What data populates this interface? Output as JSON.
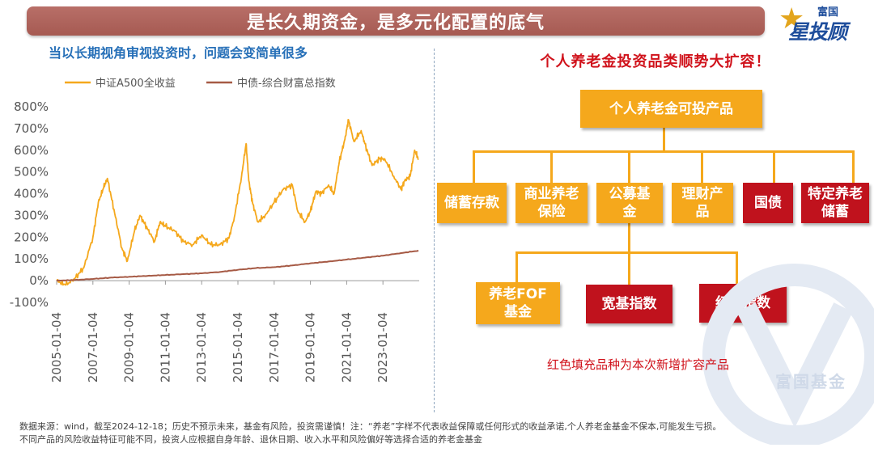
{
  "header": {
    "title": "是长久期资金，是多元化配置的底气"
  },
  "logo": {
    "top": "富国",
    "main": "星投顾",
    "icon": "star-icon"
  },
  "left": {
    "subtitle": "当以长期视角审视投资时，问题会变简单很多"
  },
  "chart_data": {
    "type": "line",
    "title": "",
    "xlabel": "",
    "ylabel": "",
    "ylim": [
      -100,
      800
    ],
    "yticks": [
      "800%",
      "700%",
      "600%",
      "500%",
      "400%",
      "300%",
      "200%",
      "100%",
      "0%",
      "-100%"
    ],
    "ytick_values": [
      800,
      700,
      600,
      500,
      400,
      300,
      200,
      100,
      0,
      -100
    ],
    "xticks": [
      "2005-01-04",
      "2007-01-04",
      "2009-01-04",
      "2011-01-04",
      "2013-01-04",
      "2015-01-04",
      "2017-01-04",
      "2019-01-04",
      "2021-01-04",
      "2023-01-04"
    ],
    "xtick_years": [
      2005,
      2007,
      2009,
      2011,
      2013,
      2015,
      2017,
      2019,
      2021,
      2023
    ],
    "xlim": [
      2005.0,
      2025.0
    ],
    "legend_position": "top",
    "series": [
      {
        "name": "中证A500全收益",
        "color": "#f5a81c",
        "x": [
          2005.0,
          2005.5,
          2006.0,
          2006.5,
          2007.0,
          2007.3,
          2007.6,
          2007.8,
          2008.2,
          2008.6,
          2008.9,
          2009.3,
          2009.6,
          2010.0,
          2010.4,
          2010.7,
          2011.0,
          2011.5,
          2012.0,
          2012.5,
          2013.0,
          2013.5,
          2014.0,
          2014.5,
          2014.8,
          2015.2,
          2015.45,
          2015.6,
          2015.8,
          2016.1,
          2016.5,
          2017.0,
          2017.5,
          2018.0,
          2018.3,
          2018.7,
          2019.0,
          2019.3,
          2019.6,
          2020.0,
          2020.3,
          2020.6,
          2020.9,
          2021.1,
          2021.4,
          2021.8,
          2022.0,
          2022.4,
          2022.8,
          2023.1,
          2023.6,
          2024.0,
          2024.2,
          2024.5,
          2024.75,
          2024.96
        ],
        "values": [
          0,
          -20,
          10,
          60,
          200,
          360,
          430,
          470,
          310,
          150,
          90,
          230,
          300,
          240,
          180,
          270,
          250,
          230,
          180,
          165,
          210,
          165,
          165,
          195,
          290,
          480,
          630,
          460,
          360,
          270,
          300,
          360,
          420,
          440,
          320,
          270,
          320,
          410,
          400,
          440,
          400,
          550,
          650,
          740,
          640,
          690,
          630,
          530,
          560,
          560,
          480,
          420,
          460,
          480,
          600,
          560
        ]
      },
      {
        "name": "中债-综合财富总指数",
        "color": "#a65a45",
        "x": [
          2005.0,
          2006.0,
          2007.0,
          2008.0,
          2009.0,
          2010.0,
          2011.0,
          2012.0,
          2013.0,
          2014.0,
          2015.0,
          2016.0,
          2017.0,
          2018.0,
          2019.0,
          2020.0,
          2021.0,
          2022.0,
          2023.0,
          2024.0,
          2024.96
        ],
        "values": [
          0,
          3,
          8,
          14,
          18,
          22,
          26,
          30,
          34,
          40,
          50,
          58,
          62,
          70,
          80,
          88,
          97,
          106,
          115,
          127,
          138
        ]
      }
    ]
  },
  "flowchart": {
    "title": "个人养老金投资品类顺势大扩容！",
    "root": "个人养老金可投产品",
    "level1": [
      "储蓄存款",
      "商业养老保险",
      "公募基金",
      "理财产品",
      "国债",
      "特定养老储蓄"
    ],
    "level2": [
      "养老FOF基金",
      "宽基指数",
      "红利指数"
    ],
    "note": "红色填充品种为本次新增扩容产品"
  },
  "watermark": {
    "text": "富国基金"
  },
  "footer": {
    "line1": "数据来源：wind，截至2024-12-18；历史不预示未来，基金有风险，投资需谨慎！注：“养老”字样不代表收益保障或任何形式的收益承诺,个人养老金基金不保本,可能发生亏损。",
    "line2": "不同产品的风险收益特征可能不同，投资人应根据自身年龄、退休日期、收入水平和风险偏好等选择合适的养老金基金"
  },
  "colors": {
    "orange": "#f5a81c",
    "red": "#c0121d",
    "blue": "#2770b8",
    "title_bg": "#a65a52"
  }
}
